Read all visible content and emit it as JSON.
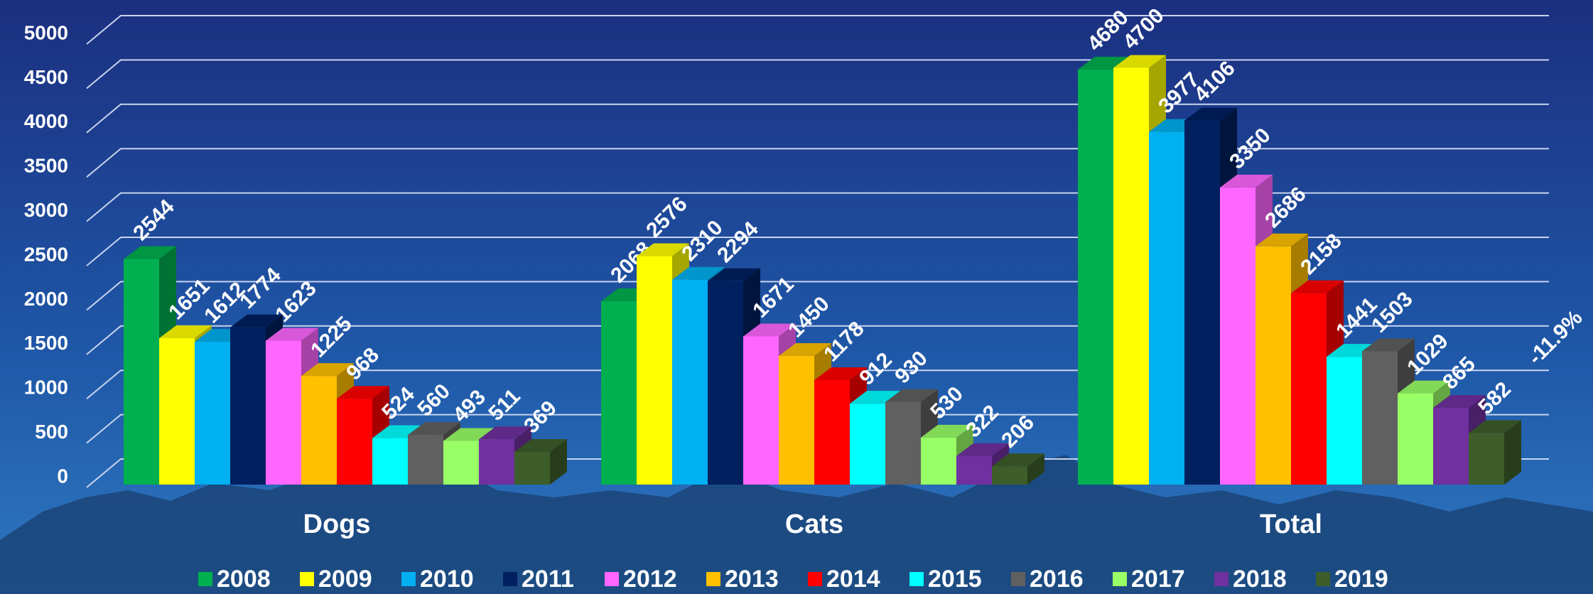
{
  "chart_data": {
    "type": "bar3d",
    "categories": [
      "Dogs",
      "Cats",
      "Total"
    ],
    "series": [
      {
        "name": "2008",
        "color": "#00b050",
        "values": [
          2544,
          2068,
          4680
        ]
      },
      {
        "name": "2009",
        "color": "#ffff00",
        "values": [
          1651,
          2576,
          4700
        ]
      },
      {
        "name": "2010",
        "color": "#00b0f0",
        "values": [
          1612,
          2310,
          3977
        ]
      },
      {
        "name": "2011",
        "color": "#002060",
        "values": [
          1774,
          2294,
          4106
        ]
      },
      {
        "name": "2012",
        "color": "#ff66ff",
        "values": [
          1623,
          1671,
          3350
        ]
      },
      {
        "name": "2013",
        "color": "#ffc000",
        "values": [
          1225,
          1450,
          2686
        ]
      },
      {
        "name": "2014",
        "color": "#ff0000",
        "values": [
          968,
          1178,
          2158
        ]
      },
      {
        "name": "2015",
        "color": "#00ffff",
        "values": [
          524,
          912,
          1441
        ]
      },
      {
        "name": "2016",
        "color": "#606060",
        "values": [
          560,
          930,
          1503
        ]
      },
      {
        "name": "2017",
        "color": "#99ff66",
        "values": [
          493,
          530,
          1029
        ]
      },
      {
        "name": "2018",
        "color": "#7030a0",
        "values": [
          511,
          322,
          865
        ]
      },
      {
        "name": "2019",
        "color": "#3d5e2a",
        "values": [
          369,
          206,
          582
        ]
      }
    ],
    "annotation": "-11.9%",
    "ylim": [
      0,
      5000
    ],
    "yticks": [
      0,
      500,
      1000,
      1500,
      2000,
      2500,
      3000,
      3500,
      4000,
      4500,
      5000
    ],
    "grid": true,
    "legend": "bottom"
  }
}
